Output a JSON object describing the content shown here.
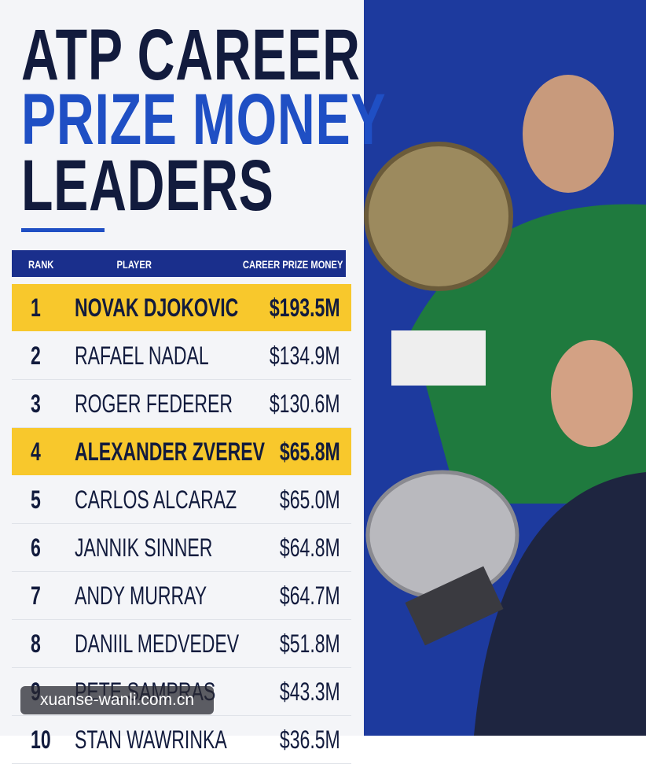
{
  "header": {
    "title_lines": [
      "ATP CAREER",
      "PRIZE MONEY",
      "LEADERS"
    ]
  },
  "table": {
    "columns": [
      "RANK",
      "PLAYER",
      "CAREER PRIZE MONEY"
    ],
    "rows": [
      [
        "1",
        "NOVAK DJOKOVIC",
        "$193.5M"
      ],
      [
        "2",
        "RAFAEL NADAL",
        "$134.9M"
      ],
      [
        "3",
        "ROGER FEDERER",
        "$130.6M"
      ],
      [
        "4",
        "ALEXANDER ZVEREV",
        "$65.8M"
      ],
      [
        "5",
        "CARLOS ALCARAZ",
        "$65.0M"
      ],
      [
        "6",
        "JANNIK SINNER",
        "$64.8M"
      ],
      [
        "7",
        "ANDY MURRAY",
        "$64.7M"
      ],
      [
        "8",
        "DANIIL MEDVEDEV",
        "$51.8M"
      ],
      [
        "9",
        "PETE SAMPRAS",
        "$43.3M"
      ],
      [
        "10",
        "STAN WAWRINKA",
        "$36.5M"
      ]
    ]
  },
  "watermark": "xuanse-wanli.com.cn"
}
